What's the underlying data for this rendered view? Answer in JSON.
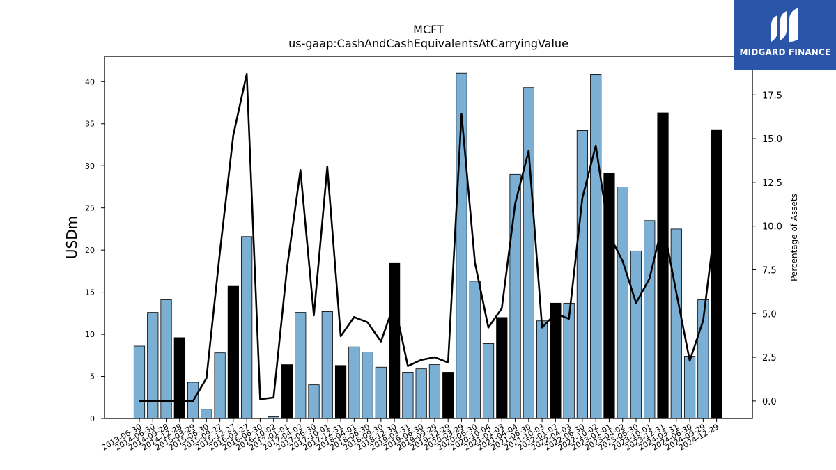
{
  "chart_data": {
    "type": "bar",
    "title": "MCFT",
    "subtitle": "us-gaap:CashAndCashEquivalentsAtCarryingValue",
    "ylabel": "USDm",
    "y2label": "Percentage of Assets",
    "ylim": [
      0,
      43
    ],
    "y2lim": [
      -1.0,
      19.7
    ],
    "yticks": [
      0,
      5,
      10,
      15,
      20,
      25,
      30,
      35,
      40
    ],
    "y2ticks": [
      0.0,
      2.5,
      5.0,
      7.5,
      10.0,
      12.5,
      15.0,
      17.5
    ],
    "categories": [
      "2013-06-30",
      "2014-06-30",
      "2014-09-28",
      "2014-12-28",
      "2015-03-29",
      "2015-06-30",
      "2015-09-27",
      "2015-12-27",
      "2016-03-27",
      "2016-06-30",
      "2016-10-02",
      "2017-01-01",
      "2017-04-02",
      "2017-06-30",
      "2017-10-01",
      "2017-12-31",
      "2018-04-01",
      "2018-06-30",
      "2018-09-30",
      "2018-12-30",
      "2019-03-31",
      "2019-06-30",
      "2019-09-29",
      "2019-12-29",
      "2020-03-29",
      "2020-06-30",
      "2020-10-04",
      "2021-01-03",
      "2021-04-04",
      "2021-06-30",
      "2021-10-03",
      "2022-01-02",
      "2022-04-03",
      "2022-06-30",
      "2022-10-02",
      "2023-01-01",
      "2023-04-02",
      "2023-06-30",
      "2023-10-01",
      "2023-12-31",
      "2024-03-31",
      "2024-06-30",
      "2024-09-29",
      "2024-12-29"
    ],
    "series": [
      {
        "kind": "bar",
        "values": [
          8.6,
          12.6,
          14.1,
          9.6,
          4.3,
          1.1,
          7.8,
          15.7,
          21.6,
          0.0,
          0.2,
          6.4,
          12.6,
          4.0,
          12.7,
          6.3,
          8.5,
          7.9,
          6.1,
          18.5,
          5.5,
          5.9,
          6.4,
          5.5,
          41.0,
          16.3,
          8.9,
          12.0,
          29.0,
          39.3,
          11.6,
          13.7,
          13.7,
          34.2,
          40.9,
          29.1,
          27.5,
          19.9,
          23.5,
          36.3,
          22.5,
          7.4,
          14.1,
          34.3
        ],
        "highlight": [
          false,
          false,
          false,
          true,
          false,
          false,
          false,
          true,
          false,
          false,
          false,
          true,
          false,
          false,
          false,
          true,
          false,
          false,
          false,
          true,
          false,
          false,
          false,
          true,
          false,
          false,
          false,
          true,
          false,
          false,
          false,
          true,
          false,
          false,
          false,
          true,
          false,
          false,
          false,
          true,
          false,
          false,
          false,
          true
        ],
        "color": "#7bafd4",
        "highlight_color": "#000000"
      },
      {
        "kind": "line",
        "axis": "right",
        "values": [
          0.0,
          0.0,
          0.0,
          0.0,
          0.0,
          1.3,
          8.5,
          15.2,
          18.7,
          0.1,
          0.2,
          7.6,
          13.2,
          4.9,
          13.4,
          3.7,
          4.8,
          4.5,
          3.4,
          5.6,
          2.0,
          2.35,
          2.5,
          2.2,
          16.4,
          7.9,
          4.2,
          5.3,
          11.3,
          14.3,
          4.2,
          5.0,
          4.7,
          11.6,
          14.6,
          9.5,
          8.0,
          5.6,
          7.0,
          10.2,
          6.2,
          2.3,
          4.6,
          10.8
        ],
        "color": "#000000"
      }
    ]
  },
  "logo": {
    "text": "MIDGARD FINANCE"
  }
}
